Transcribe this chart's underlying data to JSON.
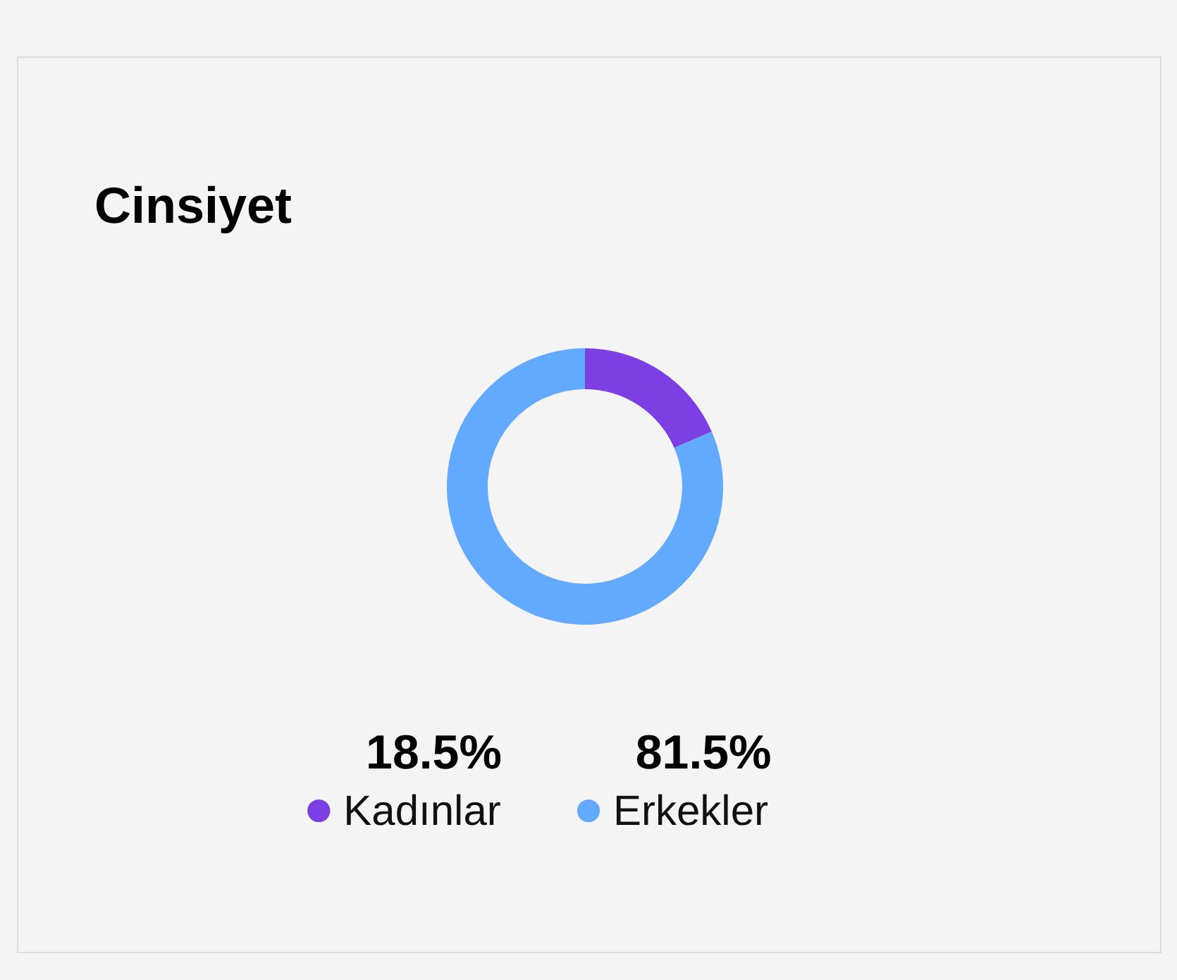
{
  "chart_data": {
    "type": "donut",
    "title": "Cinsiyet",
    "categories": [
      "Kadınlar",
      "Erkekler"
    ],
    "values": [
      18.5,
      81.5
    ],
    "colors": [
      "#7b3fe4",
      "#62aaff"
    ],
    "value_labels": [
      "18.5%",
      "81.5%"
    ],
    "legend": "bottom"
  }
}
